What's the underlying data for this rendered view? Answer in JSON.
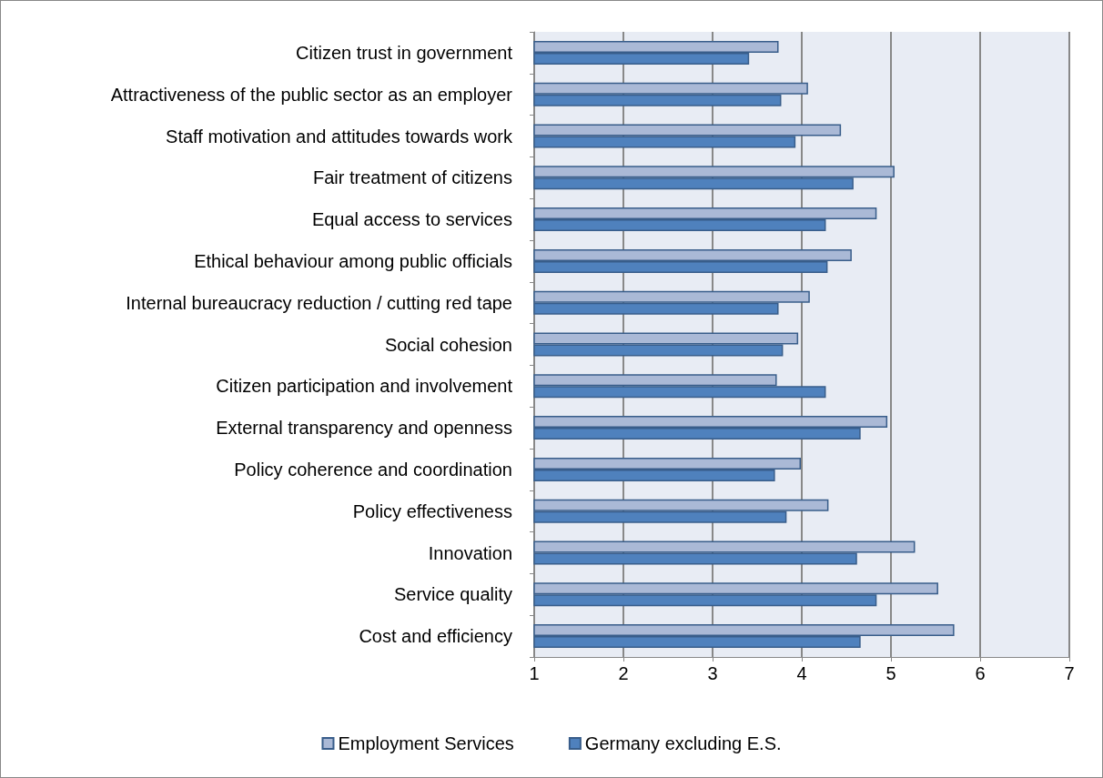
{
  "chart_data": {
    "type": "bar",
    "orientation": "horizontal",
    "categories": [
      "Citizen trust in government",
      "Attractiveness of the public sector as an employer",
      "Staff motivation and attitudes towards work",
      "Fair treatment of citizens",
      "Equal access to services",
      "Ethical behaviour among public officials",
      "Internal bureaucracy reduction / cutting red tape",
      "Social cohesion",
      "Citizen participation and involvement",
      "External transparency and openness",
      "Policy coherence and coordination",
      "Policy effectiveness",
      "Innovation",
      "Service quality",
      "Cost and efficiency"
    ],
    "series": [
      {
        "name": "Employment Services",
        "color": "#aab9d6",
        "values": [
          3.74,
          4.07,
          4.44,
          5.04,
          4.84,
          4.56,
          4.09,
          3.96,
          3.72,
          4.96,
          3.99,
          4.3,
          5.27,
          5.53,
          5.71
        ]
      },
      {
        "name": "Germany excluding E.S.",
        "color": "#4f81bd",
        "values": [
          3.41,
          3.77,
          3.93,
          4.58,
          4.27,
          4.29,
          3.74,
          3.79,
          4.27,
          4.66,
          3.7,
          3.83,
          4.62,
          4.84,
          4.66
        ]
      }
    ],
    "xlim": [
      1,
      7
    ],
    "xticks": [
      1,
      2,
      3,
      4,
      5,
      6,
      7
    ],
    "grid": "x",
    "legend": "bottom"
  }
}
